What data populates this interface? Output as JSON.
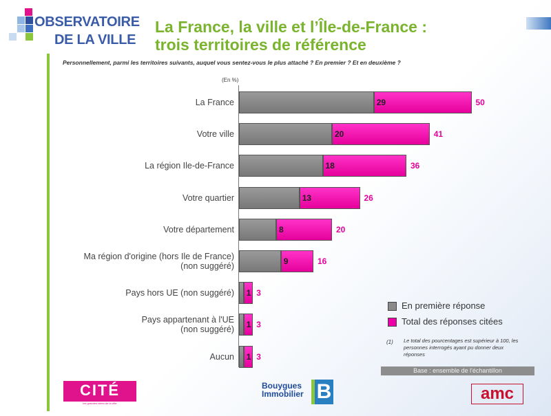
{
  "header": {
    "logo_line1": "OBSERVATOIRE",
    "logo_line2": "DE LA VILLE",
    "title_line1": "La France, la ville et l’Île-de-France :",
    "title_line2": "trois territoires de référence",
    "question": "Personnellement, parmi les territoires suivants, auquel vous sentez-vous le plus attaché ? En premier ? Et en deuxième ?"
  },
  "colors": {
    "accent_green": "#7ab32e",
    "brand_blue": "#3a5ba8",
    "first_series": "#8a8a8a",
    "total_series": "#ee00a8"
  },
  "chart_data": {
    "type": "bar",
    "orientation": "horizontal",
    "unit_label": "(En %)",
    "categories": [
      [
        "La France"
      ],
      [
        "Votre ville"
      ],
      [
        "La région Ile-de-France"
      ],
      [
        "Votre quartier"
      ],
      [
        "Votre département"
      ],
      [
        "Ma région d'origine (hors Ile de France)",
        "(non suggéré)"
      ],
      [
        "Pays hors UE (non suggéré)"
      ],
      [
        "Pays appartenant à l'UE",
        "(non suggéré)"
      ],
      [
        "Aucun"
      ]
    ],
    "series": [
      {
        "name": "En première réponse",
        "values": [
          29,
          20,
          18,
          13,
          8,
          9,
          1,
          1,
          1
        ]
      },
      {
        "name": "Total des réponses citées",
        "values": [
          50,
          41,
          36,
          26,
          20,
          16,
          3,
          3,
          3
        ]
      }
    ],
    "xlim": [
      0,
      60
    ],
    "grid": false,
    "legend_position": "bottom-right"
  },
  "footnote": {
    "marker": "(1)",
    "text": "Le total des pourcentages est supérieur à 100, les personnes interrogés ayant pu donner deux réponses"
  },
  "base_label": "Base : ensemble de l'échantillon",
  "logos": {
    "cite": "CITÉ",
    "cite_sub": "les grandes idées de la ville",
    "bouygues_line1": "Bouygues",
    "bouygues_line2": "Immobilier",
    "bouygues_mark": "B",
    "amc": "amc"
  }
}
